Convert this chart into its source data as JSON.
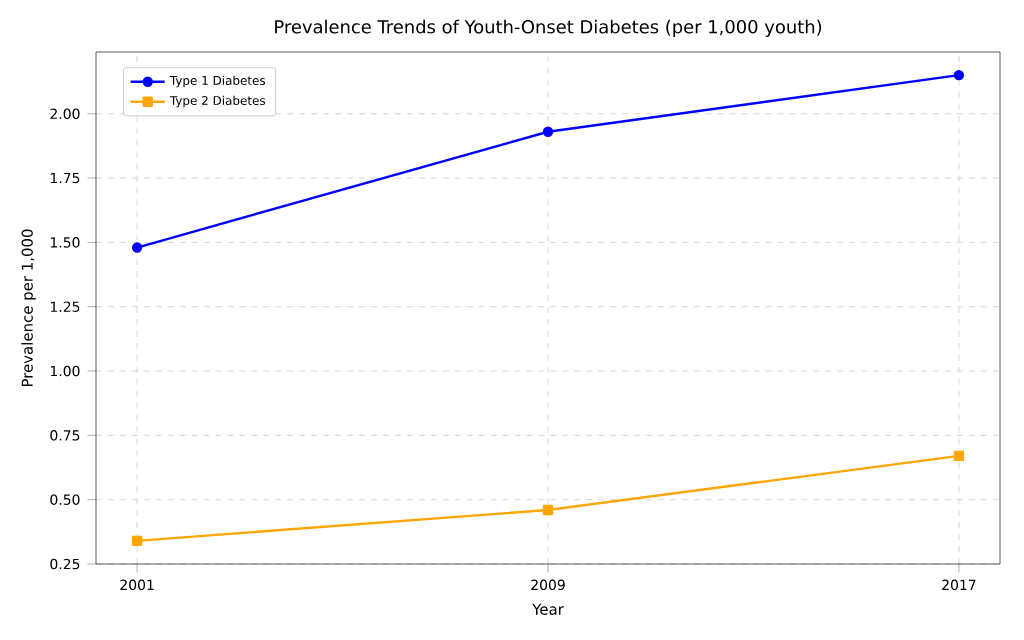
{
  "chart_data": {
    "type": "line",
    "title": "Prevalence Trends of Youth-Onset Diabetes (per 1,000 youth)",
    "xlabel": "Year",
    "ylabel": "Prevalence per 1,000",
    "x": [
      2001,
      2009,
      2017
    ],
    "series": [
      {
        "name": "Type 1 Diabetes",
        "color": "#0000ff",
        "marker": "circle",
        "values": [
          1.48,
          1.93,
          2.15
        ]
      },
      {
        "name": "Type 2 Diabetes",
        "color": "#ffa500",
        "marker": "square",
        "values": [
          0.34,
          0.46,
          0.67
        ]
      }
    ],
    "xlim": [
      2000.2,
      2017.8
    ],
    "xticks": [
      2001,
      2009,
      2017
    ],
    "ylim": [
      0.25,
      2.24
    ],
    "yticks": [
      {
        "value": 0.25,
        "label": "0.25"
      },
      {
        "value": 0.5,
        "label": "0.50"
      },
      {
        "value": 0.75,
        "label": "0.75"
      },
      {
        "value": 1.0,
        "label": "1.00"
      },
      {
        "value": 1.25,
        "label": "1.25"
      },
      {
        "value": 1.5,
        "label": "1.50"
      },
      {
        "value": 1.75,
        "label": "1.75"
      },
      {
        "value": 2.0,
        "label": "2.00"
      }
    ],
    "grid": true,
    "legend": "top left",
    "line_style": "solid"
  }
}
